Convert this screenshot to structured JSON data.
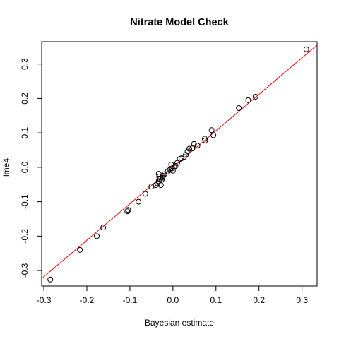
{
  "chart_data": {
    "type": "scatter",
    "title": "Nitrate Model Check",
    "xlabel": "Bayesian estimate",
    "ylabel": "lme4",
    "xlim": [
      -0.305,
      0.335
    ],
    "ylim": [
      -0.345,
      0.365
    ],
    "x_ticks": [
      -0.3,
      -0.2,
      -0.1,
      0.0,
      0.1,
      0.2,
      0.3
    ],
    "x_tick_labels": [
      "-0.3",
      "-0.2",
      "-0.1",
      "0.0",
      "0.1",
      "0.2",
      "0.3"
    ],
    "y_ticks": [
      -0.3,
      -0.2,
      -0.1,
      0.0,
      0.1,
      0.2,
      0.3
    ],
    "y_tick_labels": [
      "-0.3",
      "-0.2",
      "-0.1",
      "0.0",
      "0.1",
      "0.2",
      "0.3"
    ],
    "grid": false,
    "legend": false,
    "series": [
      {
        "marker": "open-circle",
        "color": "#000000",
        "points": [
          [
            -0.285,
            -0.326
          ],
          [
            -0.216,
            -0.24
          ],
          [
            -0.177,
            -0.2
          ],
          [
            -0.162,
            -0.175
          ],
          [
            -0.106,
            -0.128
          ],
          [
            -0.104,
            -0.124
          ],
          [
            -0.08,
            -0.1
          ],
          [
            -0.064,
            -0.077
          ],
          [
            -0.05,
            -0.056
          ],
          [
            -0.04,
            -0.052
          ],
          [
            -0.036,
            -0.047
          ],
          [
            -0.033,
            -0.04
          ],
          [
            -0.03,
            -0.034
          ],
          [
            -0.032,
            -0.027
          ],
          [
            -0.028,
            -0.052
          ],
          [
            -0.026,
            -0.036
          ],
          [
            -0.024,
            -0.03
          ],
          [
            -0.023,
            -0.025
          ],
          [
            -0.02,
            -0.02
          ],
          [
            -0.033,
            -0.019
          ],
          [
            -0.012,
            -0.012
          ],
          [
            -0.008,
            -0.008
          ],
          [
            -0.006,
            -0.006
          ],
          [
            -0.004,
            0.008
          ],
          [
            -0.002,
            -0.003
          ],
          [
            0.0,
            -0.01
          ],
          [
            0.003,
            0.001
          ],
          [
            0.006,
            0.004
          ],
          [
            0.01,
            0.013
          ],
          [
            0.016,
            0.024
          ],
          [
            0.02,
            0.026
          ],
          [
            0.026,
            0.03
          ],
          [
            0.03,
            0.036
          ],
          [
            0.034,
            0.046
          ],
          [
            0.038,
            0.054
          ],
          [
            0.045,
            0.055
          ],
          [
            0.049,
            0.068
          ],
          [
            0.057,
            0.063
          ],
          [
            0.074,
            0.083
          ],
          [
            0.075,
            0.078
          ],
          [
            0.09,
            0.108
          ],
          [
            0.094,
            0.093
          ],
          [
            0.153,
            0.172
          ],
          [
            0.175,
            0.195
          ],
          [
            0.192,
            0.205
          ],
          [
            0.31,
            0.343
          ]
        ]
      }
    ],
    "reference_line": {
      "intercept": 0.0,
      "slope": 1.06,
      "color": "#ff0000"
    }
  }
}
